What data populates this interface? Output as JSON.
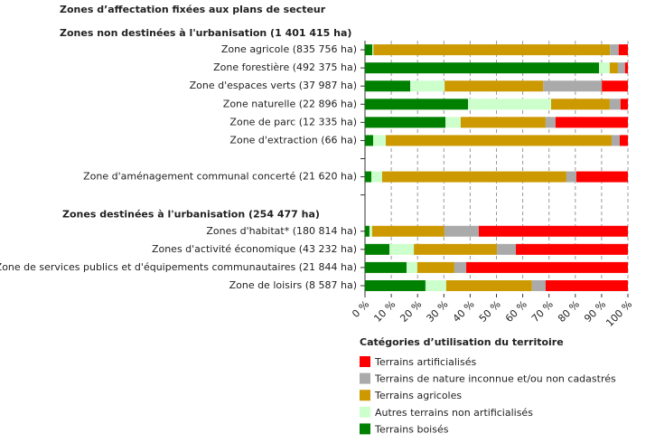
{
  "chart_data": {
    "type": "stacked-bar-horizontal",
    "title": "Zones d’affectation fixées aux plans de secteur",
    "categories": [
      "Zones non destinées à l'urbanisation (1 401 415 ha)",
      "Zone agricole (835 756 ha)",
      "Zone forestière (492 375 ha)",
      "Zone d'espaces verts (37 987 ha)",
      "Zone naturelle (22 896 ha)",
      "Zone de parc (12 335 ha)",
      "Zone d'extraction (66 ha)",
      null,
      "Zone d'aménagement communal concerté (21 620 ha)",
      null,
      "Zones destinées à l'urbanisation (254 477 ha)",
      "Zones d'habitat* (180 814 ha)",
      "Zones d'activité économique (43 232 ha)",
      "Zone de services publics et d'équipements communautaires (21 844 ha)",
      "Zone de loisirs (8 587 ha)"
    ],
    "category_bold": [
      true,
      false,
      false,
      false,
      false,
      false,
      false,
      false,
      false,
      false,
      true,
      false,
      false,
      false,
      false
    ],
    "series": [
      {
        "name": "Terrains boisés",
        "color": "#008000",
        "values": [
          null,
          2.8,
          89.0,
          17.2,
          39.2,
          30.6,
          3.1,
          null,
          2.4,
          null,
          null,
          1.7,
          9.3,
          15.8,
          23.0
        ]
      },
      {
        "name": "Autres terrains non artificialisés",
        "color": "#ccffcc",
        "values": [
          null,
          0.4,
          4.1,
          13.1,
          31.6,
          5.8,
          4.8,
          null,
          4.1,
          null,
          null,
          1.0,
          9.3,
          4.1,
          7.9
        ]
      },
      {
        "name": "Terrains agricoles",
        "color": "#cc9900",
        "values": [
          null,
          90.0,
          3.1,
          37.5,
          22.3,
          32.3,
          85.9,
          null,
          70.1,
          null,
          null,
          27.5,
          31.6,
          14.1,
          32.6
        ]
      },
      {
        "name": "Terrains de nature inconnue et/ou non cadastrés",
        "color": "#aaaaaa",
        "values": [
          null,
          3.3,
          2.7,
          22.3,
          4.1,
          3.8,
          3.1,
          null,
          3.8,
          null,
          null,
          13.1,
          7.2,
          4.5,
          5.2
        ]
      },
      {
        "name": "Terrains artificialisés",
        "color": "#ff0000",
        "values": [
          null,
          3.5,
          1.1,
          9.9,
          2.8,
          27.5,
          3.1,
          null,
          19.6,
          null,
          null,
          56.7,
          42.6,
          61.5,
          31.3
        ]
      }
    ],
    "xlim": [
      0,
      100
    ],
    "xticks": [
      {
        "value": 0,
        "label": "0 %"
      },
      {
        "value": 10,
        "label": "10 %"
      },
      {
        "value": 20,
        "label": "20 %"
      },
      {
        "value": 30,
        "label": "30 %"
      },
      {
        "value": 40,
        "label": "40 %"
      },
      {
        "value": 50,
        "label": "50 %"
      },
      {
        "value": 60,
        "label": "60 %"
      },
      {
        "value": 70,
        "label": "70 %"
      },
      {
        "value": 80,
        "label": "80 %"
      },
      {
        "value": 90,
        "label": "90 %"
      },
      {
        "value": 100,
        "label": "100 %"
      }
    ],
    "grid": true,
    "legend_title": "Catégories d’utilisation du territoire",
    "legend_order": "reversed",
    "legend_position": "bottom-right"
  }
}
